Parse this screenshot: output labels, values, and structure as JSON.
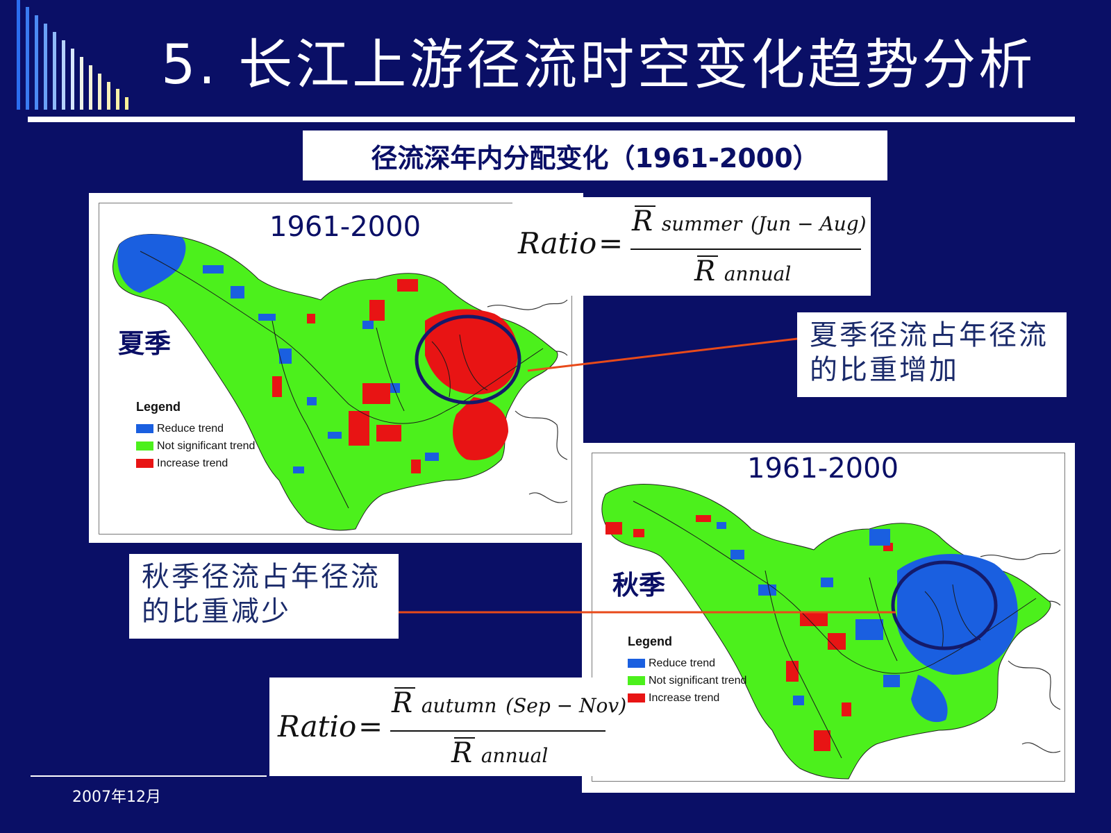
{
  "title": "5.  长江上游径流时空变化趋势分析",
  "subtitle": "径流深年内分配变化（1961-2000）",
  "summer": {
    "year_label": "1961-2000",
    "season_label": "夏季",
    "legend": {
      "title": "Legend",
      "items": [
        {
          "label": "Reduce trend",
          "color": "#1a5fe0"
        },
        {
          "label": "Not significant trend",
          "color": "#4cf01c"
        },
        {
          "label": "Increase trend",
          "color": "#e81414"
        }
      ]
    },
    "formula": {
      "lhs": "Ratio",
      "eq": "=",
      "num_symbol": "R",
      "num_sub": "summer",
      "num_period": "(Jun − Aug)",
      "den_symbol": "R",
      "den_sub": "annual"
    },
    "callout": [
      "夏季径流占年径流",
      "的比重增加"
    ],
    "highlight_color": "#e81414"
  },
  "autumn": {
    "year_label": "1961-2000",
    "season_label": "秋季",
    "legend": {
      "title": "Legend",
      "items": [
        {
          "label": "Reduce trend",
          "color": "#1a5fe0"
        },
        {
          "label": "Not significant trend",
          "color": "#4cf01c"
        },
        {
          "label": "Increase trend",
          "color": "#e81414"
        }
      ]
    },
    "formula": {
      "lhs": "Ratio",
      "eq": "=",
      "num_symbol": "R",
      "num_sub": "autumn",
      "num_period": "(Sep − Nov)",
      "den_symbol": "R",
      "den_sub": "annual"
    },
    "callout": [
      "秋季径流占年径流",
      "的比重减少"
    ],
    "highlight_color": "#1a5fe0"
  },
  "footer_date": "2007年12月",
  "colors": {
    "background": "#0a0f66",
    "callout_line": "#e84a1a",
    "circle": "#141a6a"
  }
}
